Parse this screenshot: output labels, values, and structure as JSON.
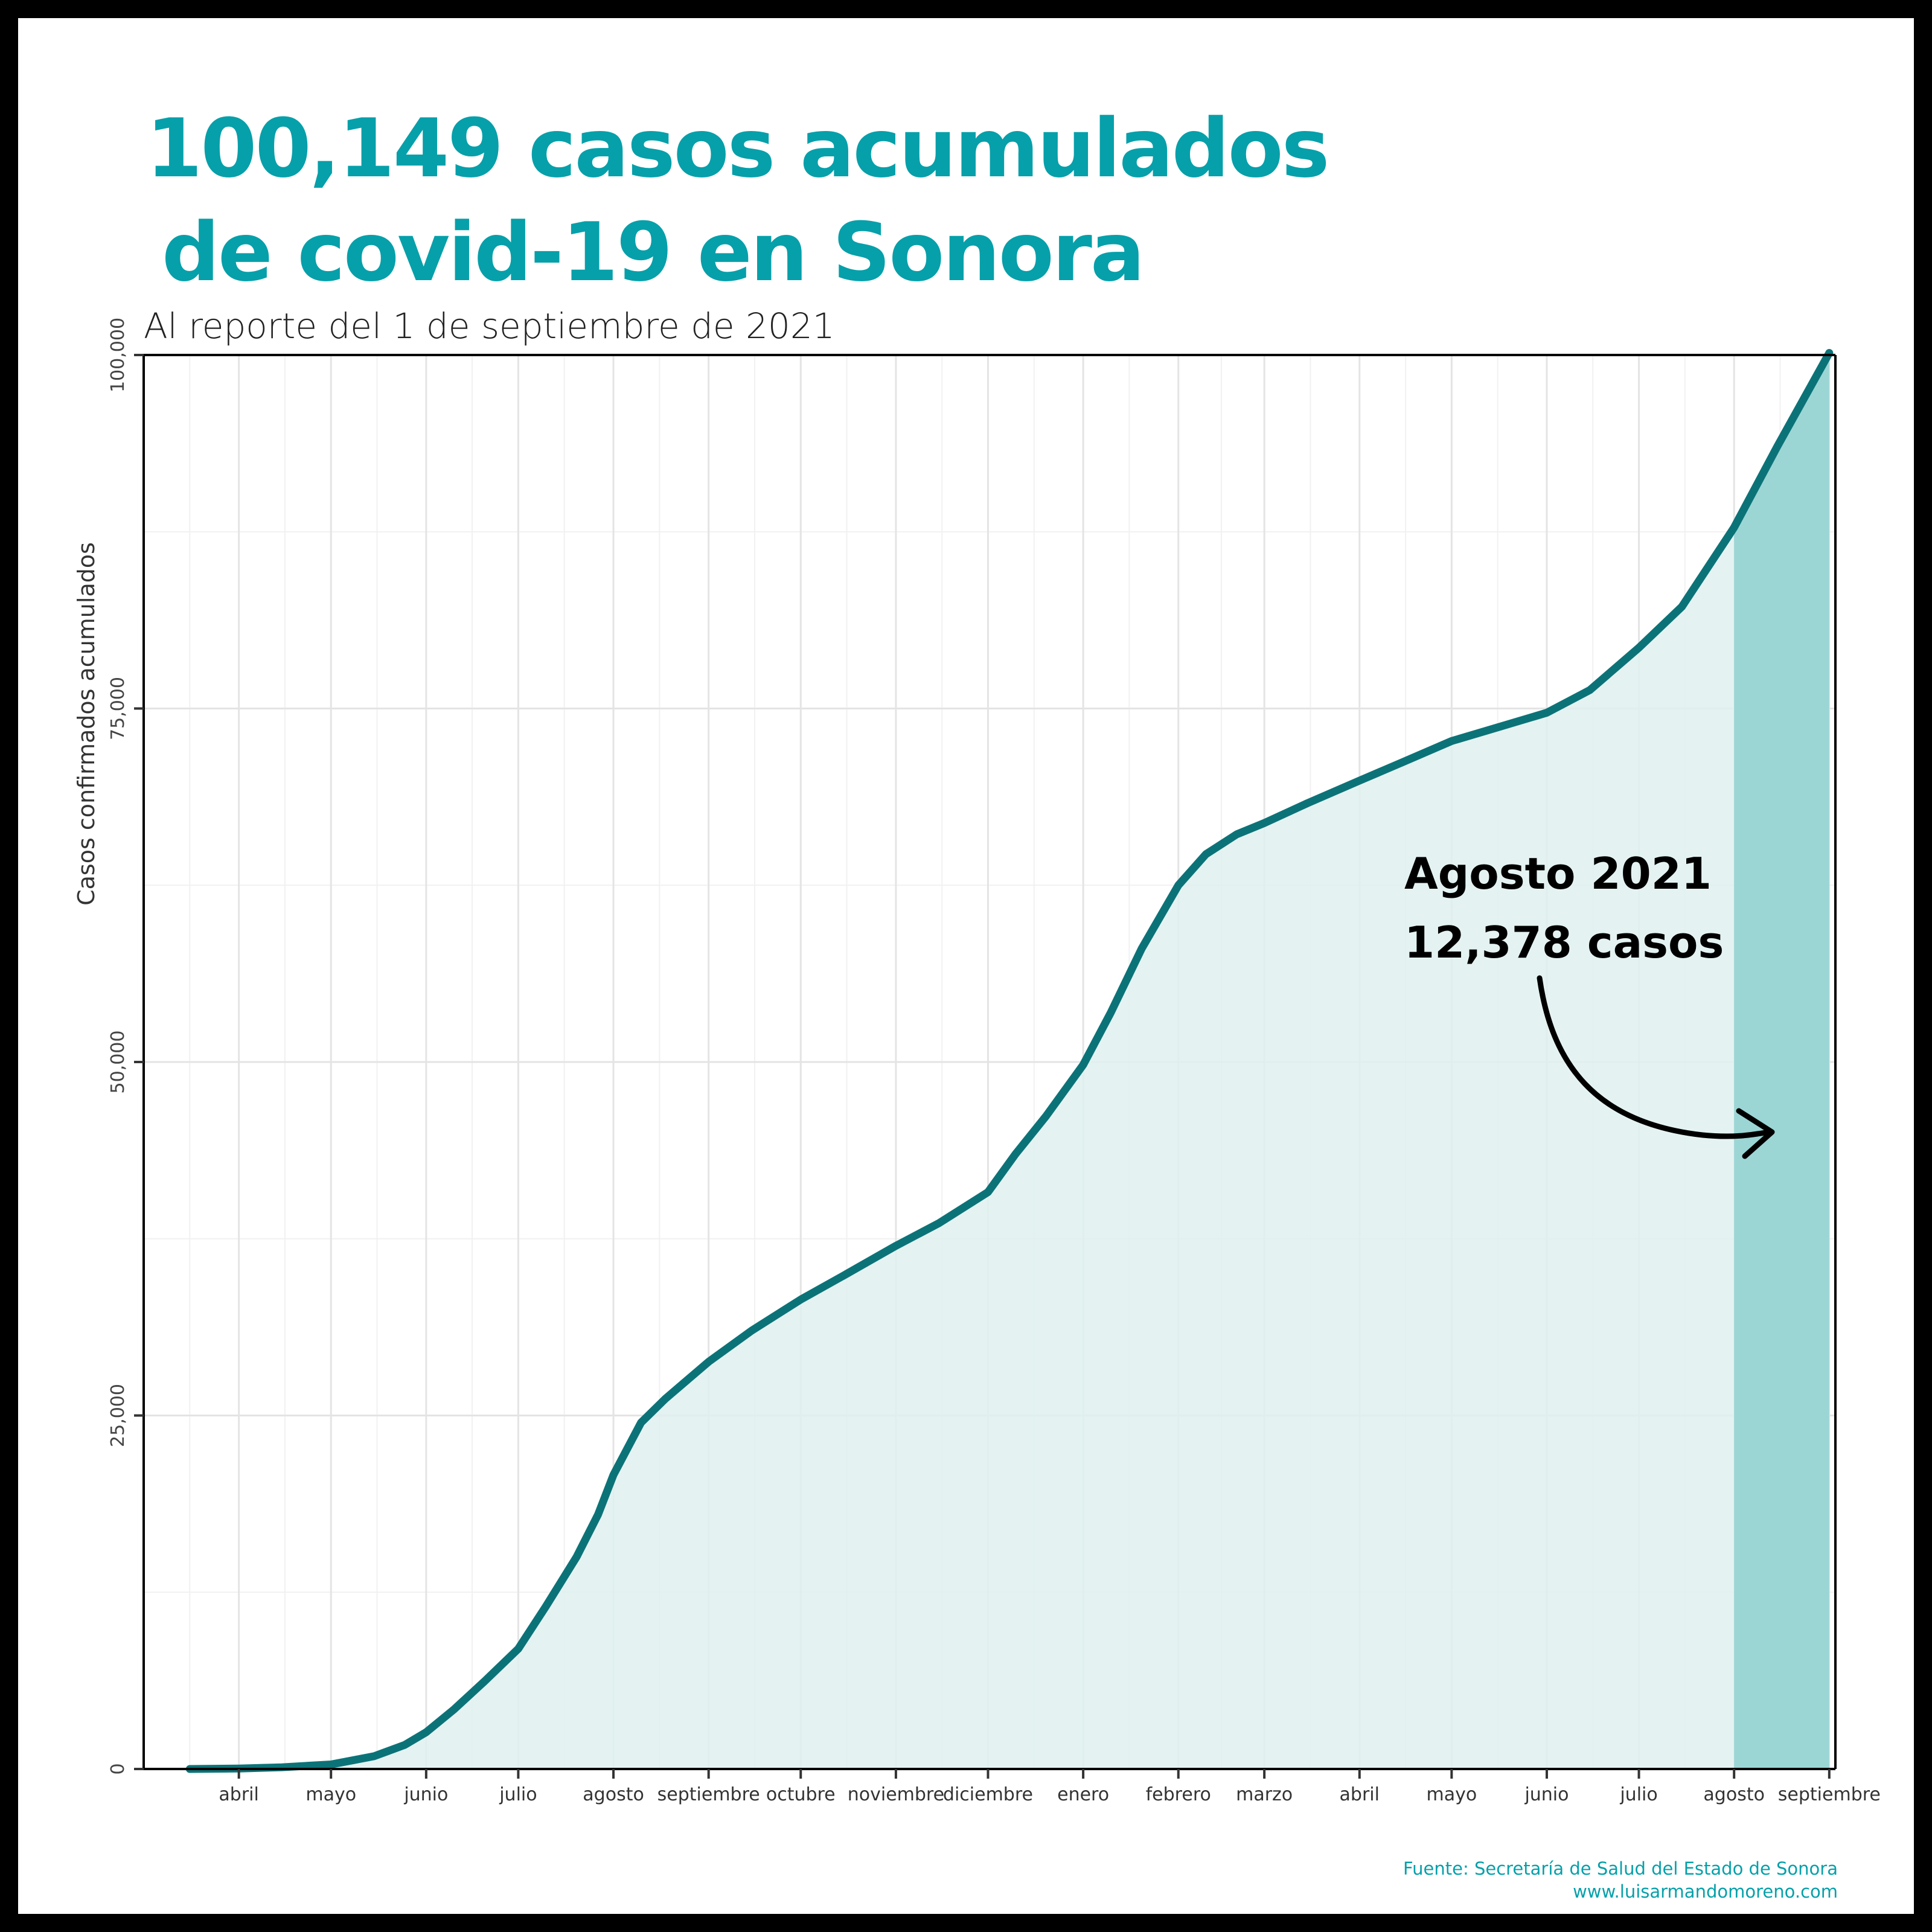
{
  "title_line1": "100,149 casos acumulados",
  "title_line2": "de covid-19 en Sonora",
  "subtitle": "Al reporte del 1 de septiembre de 2021",
  "source_line1": "Fuente: Secretaría de Salud del Estado de Sonora",
  "source_line2": "www.luisarmandomoreno.com",
  "colors": {
    "accent": "#06a0aa",
    "line": "#0b7378",
    "area": "#dff1f0",
    "highlight": "#9bd6d5",
    "background": "#ffffff",
    "frame": "#000000"
  },
  "chart_data": {
    "type": "area",
    "title": "100,149 casos acumulados de covid-19 en Sonora",
    "subtitle": "Al reporte del 1 de septiembre de 2021",
    "ylabel": "Casos confirmados acumulados",
    "xlabel": "",
    "ylim": [
      0,
      100000
    ],
    "xlim": [
      "2020-03-01",
      "2021-09-03"
    ],
    "yticks": [
      0,
      25000,
      50000,
      75000,
      100000
    ],
    "ytick_labels": [
      "0",
      "25,000",
      "50,000",
      "75,000",
      "100,000"
    ],
    "grid": true,
    "month_ticks": [
      {
        "date": "2020-04-01",
        "label": "abril"
      },
      {
        "date": "2020-05-01",
        "label": "mayo"
      },
      {
        "date": "2020-06-01",
        "label": "junio"
      },
      {
        "date": "2020-07-01",
        "label": "julio"
      },
      {
        "date": "2020-08-01",
        "label": "agosto"
      },
      {
        "date": "2020-09-01",
        "label": "septiembre"
      },
      {
        "date": "2020-10-01",
        "label": "octubre"
      },
      {
        "date": "2020-11-01",
        "label": "noviembre"
      },
      {
        "date": "2020-12-01",
        "label": "diciembre"
      },
      {
        "date": "2021-01-01",
        "label": "enero"
      },
      {
        "date": "2021-02-01",
        "label": "febrero"
      },
      {
        "date": "2021-03-01",
        "label": "marzo"
      },
      {
        "date": "2021-04-01",
        "label": "abril"
      },
      {
        "date": "2021-05-01",
        "label": "mayo"
      },
      {
        "date": "2021-06-01",
        "label": "junio"
      },
      {
        "date": "2021-07-01",
        "label": "julio"
      },
      {
        "date": "2021-08-01",
        "label": "agosto"
      },
      {
        "date": "2021-09-01",
        "label": "septiembre"
      }
    ],
    "series": [
      {
        "values": [
          [
            "2020-03-16",
            0
          ],
          [
            "2020-04-01",
            30
          ],
          [
            "2020-04-15",
            120
          ],
          [
            "2020-05-01",
            320
          ],
          [
            "2020-05-15",
            900
          ],
          [
            "2020-05-25",
            1700
          ],
          [
            "2020-06-01",
            2600
          ],
          [
            "2020-06-10",
            4200
          ],
          [
            "2020-06-20",
            6200
          ],
          [
            "2020-07-01",
            8500
          ],
          [
            "2020-07-10",
            11500
          ],
          [
            "2020-07-20",
            15000
          ],
          [
            "2020-07-27",
            18000
          ],
          [
            "2020-08-01",
            20800
          ],
          [
            "2020-08-10",
            24500
          ],
          [
            "2020-08-18",
            26200
          ],
          [
            "2020-09-01",
            28800
          ],
          [
            "2020-09-15",
            31000
          ],
          [
            "2020-10-01",
            33200
          ],
          [
            "2020-10-15",
            34900
          ],
          [
            "2020-11-01",
            37000
          ],
          [
            "2020-11-15",
            38600
          ],
          [
            "2020-12-01",
            40800
          ],
          [
            "2020-12-10",
            43500
          ],
          [
            "2020-12-20",
            46200
          ],
          [
            "2021-01-01",
            49800
          ],
          [
            "2021-01-10",
            53500
          ],
          [
            "2021-01-20",
            58000
          ],
          [
            "2021-02-01",
            62500
          ],
          [
            "2021-02-10",
            64700
          ],
          [
            "2021-02-20",
            66100
          ],
          [
            "2021-03-01",
            66900
          ],
          [
            "2021-03-15",
            68300
          ],
          [
            "2021-04-01",
            69900
          ],
          [
            "2021-04-15",
            71200
          ],
          [
            "2021-05-01",
            72700
          ],
          [
            "2021-05-15",
            73600
          ],
          [
            "2021-06-01",
            74700
          ],
          [
            "2021-06-15",
            76300
          ],
          [
            "2021-07-01",
            79300
          ],
          [
            "2021-07-15",
            82200
          ],
          [
            "2021-08-01",
            87800
          ],
          [
            "2021-08-15",
            93500
          ],
          [
            "2021-09-01",
            100149
          ]
        ]
      }
    ],
    "highlight": {
      "start": "2021-08-01",
      "end": "2021-09-01",
      "label_line1": "Agosto 2021",
      "label_line2": "12,378 casos"
    }
  }
}
